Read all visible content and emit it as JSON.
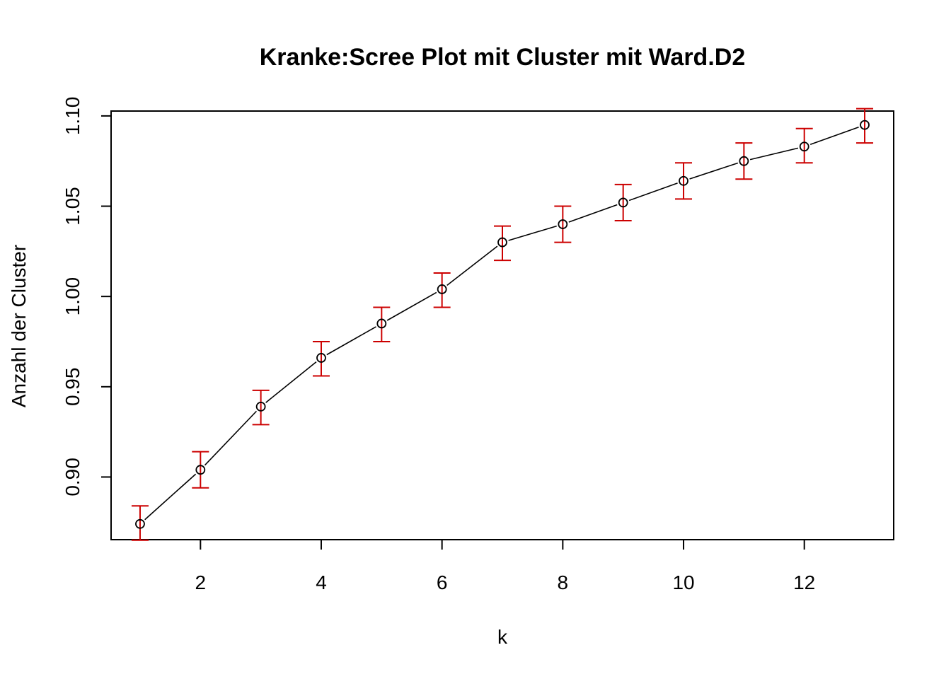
{
  "chart_data": {
    "type": "scatter",
    "title": "Kranke:Scree Plot mit Cluster mit Ward.D2",
    "xlabel": "k",
    "ylabel": "Anzahl der Cluster",
    "x": [
      1,
      2,
      3,
      4,
      5,
      6,
      7,
      8,
      9,
      10,
      11,
      12,
      13
    ],
    "series": [
      {
        "values": [
          0.874,
          0.904,
          0.939,
          0.966,
          0.985,
          1.004,
          1.03,
          1.04,
          1.052,
          1.064,
          1.075,
          1.083,
          1.095
        ],
        "error_lower": [
          0.865,
          0.894,
          0.929,
          0.956,
          0.975,
          0.994,
          1.02,
          1.03,
          1.042,
          1.054,
          1.065,
          1.074,
          1.085
        ],
        "error_upper": [
          0.884,
          0.914,
          0.948,
          0.975,
          0.994,
          1.013,
          1.039,
          1.05,
          1.062,
          1.074,
          1.085,
          1.093,
          1.104
        ],
        "line_color": "#000000",
        "point_color": "#000000",
        "error_color": "#cc0000"
      }
    ],
    "xticks": [
      "2",
      "4",
      "6",
      "8",
      "10",
      "12"
    ],
    "xtick_values": [
      2,
      4,
      6,
      8,
      10,
      12
    ],
    "yticks": [
      "0.90",
      "0.95",
      "1.00",
      "1.05",
      "1.10"
    ],
    "ytick_values": [
      0.9,
      0.95,
      1.0,
      1.05,
      1.1
    ],
    "xlim": [
      0.52,
      13.48
    ],
    "ylim": [
      0.8653,
      1.1027
    ],
    "grid": false,
    "legend": "none"
  }
}
